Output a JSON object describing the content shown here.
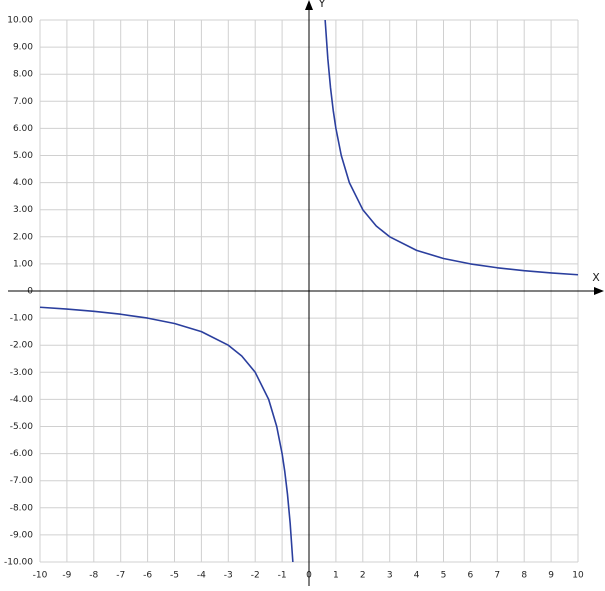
{
  "chart_data": {
    "type": "line",
    "x_label": "X",
    "y_label": "Y",
    "x": [
      -10,
      -9,
      -8,
      -7,
      -6,
      -5,
      -4,
      -3,
      -2.5,
      -2,
      -1.5,
      -1.2,
      -1,
      -0.9,
      -0.8,
      -0.7,
      -0.6,
      0,
      0.6,
      0.7,
      0.8,
      0.9,
      1,
      1.2,
      1.5,
      2,
      2.5,
      3,
      4,
      5,
      6,
      7,
      8,
      9,
      10
    ],
    "series": [
      {
        "color": "#2b3f9e",
        "values": [
          -0.6,
          -0.6667,
          -0.75,
          -0.8571,
          -1,
          -1.2,
          -1.5,
          -2,
          -2.4,
          -3,
          -4,
          -5,
          -6,
          -6.6667,
          -7.5,
          -8.5714,
          -10,
          null,
          10,
          8.5714,
          7.5,
          6.6667,
          6,
          5,
          4,
          3,
          2.4,
          2,
          1.5,
          1.2,
          1,
          0.8571,
          0.75,
          0.6667,
          0.6
        ]
      }
    ],
    "xlim": [
      -10,
      10
    ],
    "ylim": [
      -10,
      10
    ],
    "xticks": [
      -10,
      -9,
      -8,
      -7,
      -6,
      -5,
      -4,
      -3,
      -2,
      -1,
      0,
      1,
      2,
      3,
      4,
      5,
      6,
      7,
      8,
      9,
      10
    ],
    "yticks": [
      {
        "value": -10,
        "label": "-10.00"
      },
      {
        "value": -9,
        "label": "-9.00"
      },
      {
        "value": -8,
        "label": "-8.00"
      },
      {
        "value": -7,
        "label": "-7.00"
      },
      {
        "value": -6,
        "label": "-6.00"
      },
      {
        "value": -5,
        "label": "-5.00"
      },
      {
        "value": -4,
        "label": "-4.00"
      },
      {
        "value": -3,
        "label": "-3.00"
      },
      {
        "value": -2,
        "label": "-2.00"
      },
      {
        "value": -1,
        "label": "-1.00"
      },
      0,
      {
        "value": 1,
        "label": "1.00"
      },
      {
        "value": 2,
        "label": "2.00"
      },
      {
        "value": 3,
        "label": "3.00"
      },
      {
        "value": 4,
        "label": "4.00"
      },
      {
        "value": 5,
        "label": "5.00"
      },
      {
        "value": 6,
        "label": "6.00"
      },
      {
        "value": 7,
        "label": "7.00"
      },
      {
        "value": 8,
        "label": "8.00"
      },
      {
        "value": 9,
        "label": "9.00"
      },
      {
        "value": 10,
        "label": "10.00"
      }
    ],
    "grid": true
  }
}
